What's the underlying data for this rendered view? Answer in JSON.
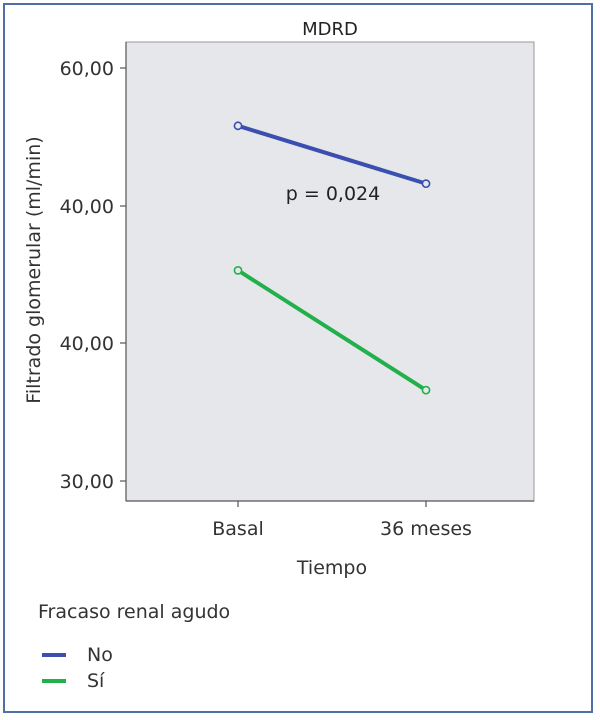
{
  "chart_data": {
    "type": "line",
    "title": "MDRD",
    "xlabel": "Tiempo",
    "ylabel": "Filtrado glomerular (ml/min)",
    "categories": [
      "Basal",
      "36 meses"
    ],
    "y_tick_labels": [
      "60,00",
      "40,00",
      "40,00",
      "30,00"
    ],
    "ylim": [
      30,
      60
    ],
    "grid": false,
    "legend_title": "Fracaso renal agudo",
    "legend_position": "bottom-left",
    "series": [
      {
        "name": "No",
        "values": [
          55.8,
          51.6
        ],
        "color": "#3a4fb0"
      },
      {
        "name": "Sí",
        "values": [
          45.3,
          36.6
        ],
        "color": "#22b04a"
      }
    ],
    "annotations": [
      {
        "text": "p = 0,024"
      }
    ],
    "plot_background": "#e5e7eb"
  }
}
